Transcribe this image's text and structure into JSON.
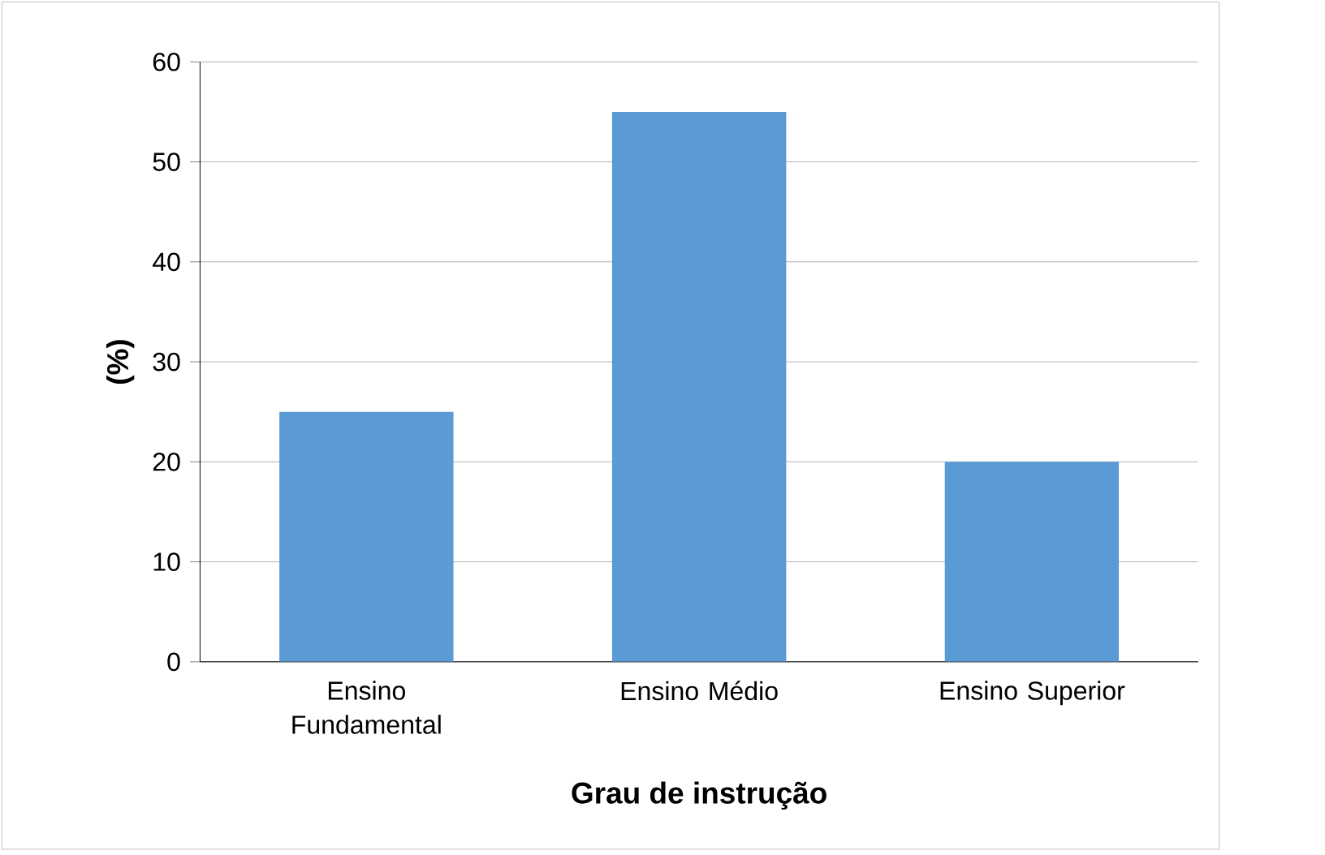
{
  "chart_data": {
    "type": "bar",
    "categories": [
      "Ensino Fundamental",
      "Ensino Médio",
      "Ensino Superior"
    ],
    "values": [
      25,
      55,
      20
    ],
    "color": "#5b9bd5",
    "xlabel": "Grau de instrução",
    "ylabel": "(%)",
    "ylim": [
      0,
      60
    ],
    "yticks": [
      0,
      10,
      20,
      30,
      40,
      50,
      60
    ],
    "grid": "y"
  }
}
